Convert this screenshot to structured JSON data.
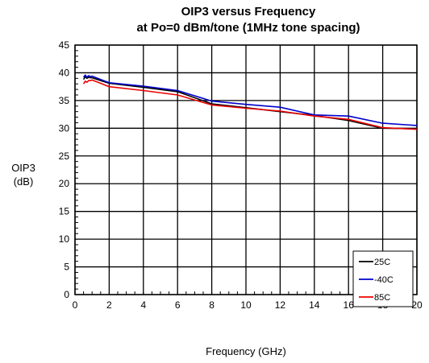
{
  "chart_data": {
    "type": "line",
    "title": "OIP3 versus Frequency",
    "subtitle": "at Po=0 dBm/tone (1MHz tone spacing)",
    "xlabel": "Frequency (GHz)",
    "ylabel": [
      "OIP3",
      "(dB)"
    ],
    "xlim": [
      0,
      20
    ],
    "ylim": [
      0,
      45
    ],
    "xticks": [
      0,
      2,
      4,
      6,
      8,
      10,
      12,
      14,
      16,
      18,
      20
    ],
    "yticks": [
      0,
      5,
      10,
      15,
      20,
      25,
      30,
      35,
      40,
      45
    ],
    "grid": true,
    "legend_position": "bottom-right",
    "series": [
      {
        "name": "25C",
        "color": "#000000",
        "x": [
          0.5,
          0.6,
          0.7,
          0.8,
          0.9,
          1.0,
          1.5,
          2,
          4,
          6,
          8,
          10,
          12,
          14,
          16,
          18,
          20
        ],
        "y": [
          38.8,
          39.3,
          39.0,
          39.2,
          39.1,
          39.1,
          38.6,
          38.1,
          37.4,
          36.6,
          34.4,
          33.7,
          33.0,
          32.3,
          31.4,
          30.0,
          29.9
        ]
      },
      {
        "name": "-40C",
        "color": "#0000cc",
        "x": [
          0.5,
          0.6,
          0.7,
          0.8,
          0.9,
          1.0,
          1.5,
          2,
          4,
          6,
          8,
          10,
          12,
          14,
          16,
          18,
          20
        ],
        "y": [
          39.2,
          39.6,
          39.2,
          39.5,
          39.3,
          39.4,
          38.8,
          38.2,
          37.6,
          36.8,
          34.9,
          34.3,
          33.8,
          32.4,
          32.2,
          30.9,
          30.5
        ]
      },
      {
        "name": "85C",
        "color": "#ee0000",
        "x": [
          0.5,
          0.6,
          0.7,
          0.8,
          0.9,
          1.0,
          1.5,
          2,
          4,
          6,
          8,
          10,
          12,
          14,
          16,
          18,
          20
        ],
        "y": [
          38.0,
          38.5,
          38.3,
          38.6,
          38.6,
          38.7,
          38.1,
          37.5,
          36.8,
          36.0,
          34.2,
          33.6,
          33.1,
          32.2,
          31.6,
          30.1,
          29.8
        ]
      }
    ]
  }
}
